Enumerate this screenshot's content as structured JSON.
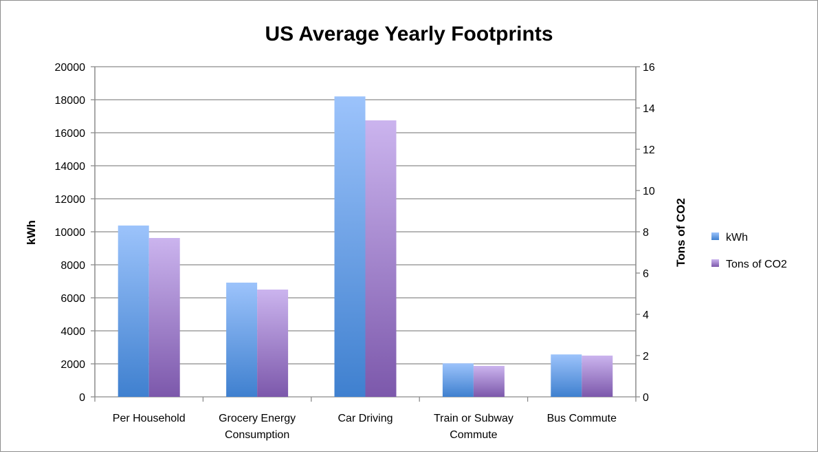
{
  "chart_data": {
    "type": "bar",
    "title": "US Average Yearly Footprints",
    "categories": [
      "Per Household",
      "Grocery Energy Consumption",
      "Car Driving",
      "Train or Subway Commute",
      "Bus Commute"
    ],
    "category_lines": [
      [
        "Per Household"
      ],
      [
        "Grocery Energy",
        "Consumption"
      ],
      [
        "Car Driving"
      ],
      [
        "Train or Subway",
        "Commute"
      ],
      [
        "Bus Commute"
      ]
    ],
    "series": [
      {
        "name": "kWh",
        "axis": "left",
        "values": [
          10380,
          6920,
          18200,
          2030,
          2570
        ],
        "color_top": "#9cc3fb",
        "color_bottom": "#3f80cf"
      },
      {
        "name": "Tons of CO2",
        "axis": "right",
        "values": [
          7.7,
          5.2,
          13.4,
          1.5,
          2.0
        ],
        "color_top": "#cbb4ee",
        "color_bottom": "#7c58ab"
      }
    ],
    "ylabel": "kWh",
    "y2label": "Tons of CO2",
    "ylim": [
      0,
      20000
    ],
    "y2lim": [
      0,
      16
    ],
    "yticks": [
      0,
      2000,
      4000,
      6000,
      8000,
      10000,
      12000,
      14000,
      16000,
      18000,
      20000
    ],
    "y2ticks": [
      0,
      2,
      4,
      6,
      8,
      10,
      12,
      14,
      16
    ],
    "grid": true,
    "legend": "right"
  }
}
